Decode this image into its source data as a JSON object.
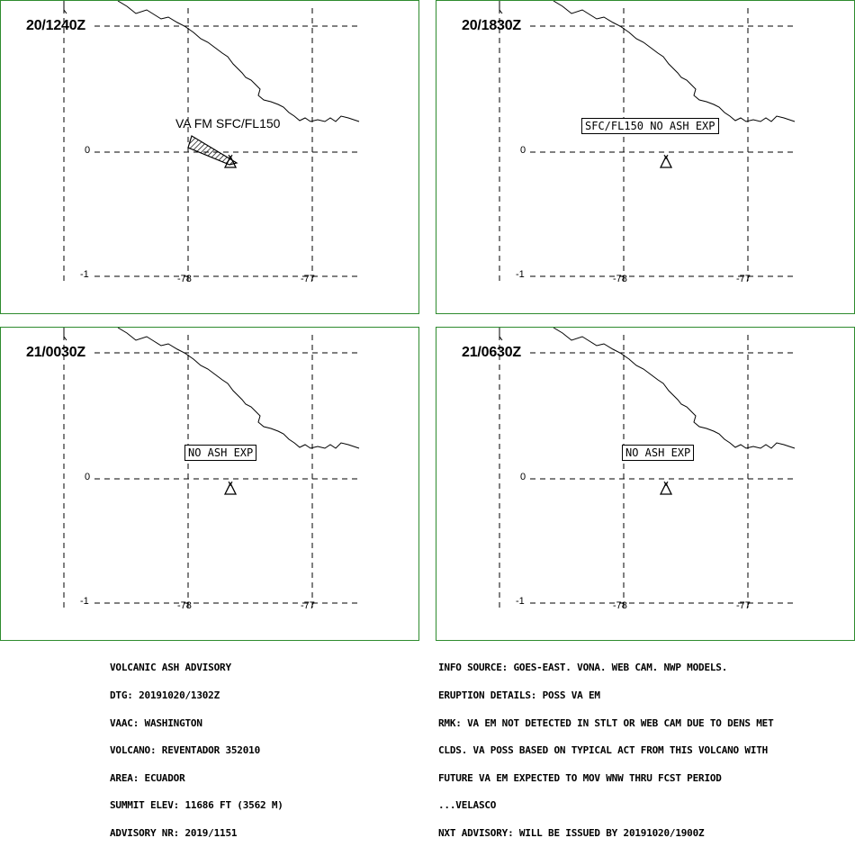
{
  "panels": [
    {
      "time": "20/1240Z",
      "label": "VA FM SFC/FL150",
      "label_style": "plain"
    },
    {
      "time": "20/1830Z",
      "label": "SFC/FL150 NO ASH EXP",
      "label_style": "boxed"
    },
    {
      "time": "21/0030Z",
      "label": "NO ASH EXP",
      "label_style": "boxed"
    },
    {
      "time": "21/0630Z",
      "label": "NO ASH EXP",
      "label_style": "boxed"
    }
  ],
  "axes": {
    "lat_labels": [
      "0",
      "-1"
    ],
    "lon_labels": [
      "-78",
      "-77"
    ]
  },
  "advisory_left": [
    "VOLCANIC ASH ADVISORY",
    "DTG: 20191020/1302Z",
    "VAAC: WASHINGTON",
    "VOLCANO: REVENTADOR 352010",
    "AREA: ECUADOR",
    "SUMMIT ELEV: 11686 FT (3562 M)",
    "ADVISORY NR: 2019/1151"
  ],
  "advisory_right": [
    "INFO SOURCE: GOES-EAST. VONA. WEB CAM. NWP MODELS.",
    "ERUPTION DETAILS: POSS VA EM",
    "RMK: VA EM NOT DETECTED IN STLT OR WEB CAM DUE TO DENS MET",
    "CLDS. VA POSS BASED ON TYPICAL ACT FROM THIS VOLCANO WITH",
    "FUTURE VA EM EXPECTED TO MOV WNW THRU FCST PERIOD",
    "...VELASCO",
    "NXT ADVISORY: WILL BE ISSUED BY 20191020/1900Z"
  ],
  "colors": {
    "panel_border": "#2e8b2e",
    "lines": "#000000"
  },
  "icons": {
    "volcano": "volcano-triangle-icon",
    "ash_polygon": "hatched-ash-area"
  }
}
